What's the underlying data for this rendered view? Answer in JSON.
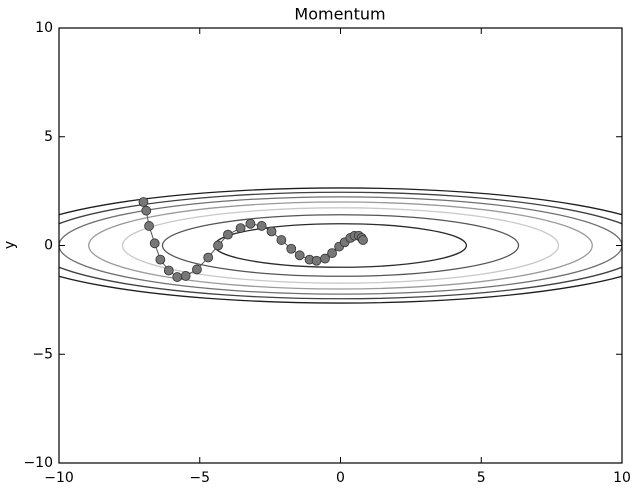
{
  "chart_data": {
    "type": "line",
    "title": "Momentum",
    "ylabel": "y",
    "x": [
      -7.0,
      -6.9,
      -6.8,
      -6.6,
      -6.4,
      -6.1,
      -5.8,
      -5.5,
      -5.1,
      -4.7,
      -4.35,
      -4.0,
      -3.55,
      -3.2,
      -2.8,
      -2.45,
      -2.1,
      -1.75,
      -1.45,
      -1.1,
      -0.85,
      -0.55,
      -0.3,
      -0.05,
      0.15,
      0.35,
      0.5,
      0.65,
      0.75,
      0.8
    ],
    "series": [
      {
        "color": "#777777",
        "values": [
          2.0,
          1.6,
          0.9,
          0.1,
          -0.65,
          -1.15,
          -1.45,
          -1.4,
          -1.1,
          -0.55,
          0.0,
          0.5,
          0.8,
          1.0,
          0.9,
          0.65,
          0.25,
          -0.15,
          -0.45,
          -0.65,
          -0.7,
          -0.6,
          -0.35,
          -0.05,
          0.15,
          0.35,
          0.45,
          0.45,
          0.35,
          0.25
        ]
      }
    ],
    "contour_levels": [
      1,
      2,
      3,
      4,
      5,
      6,
      7
    ],
    "contour_colors": [
      "#2a2a2a",
      "#555555",
      "#c8c8c8",
      "#9a9a9a",
      "#707070",
      "#404040",
      "#1e1e1e"
    ],
    "xlim": [
      -10,
      10
    ],
    "ylim": [
      -10,
      10
    ],
    "xticks": [
      {
        "value": -10,
        "label": "−10"
      },
      {
        "value": -5,
        "label": "−5"
      },
      0,
      5,
      10
    ],
    "yticks": [
      {
        "value": -10,
        "label": "−10"
      },
      {
        "value": -5,
        "label": "−5"
      },
      0,
      5,
      10
    ]
  }
}
